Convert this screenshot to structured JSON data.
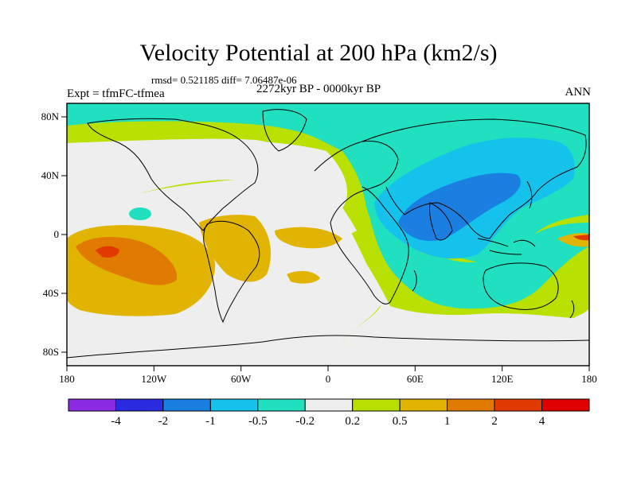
{
  "title": "Velocity Potential at 200 hPa (km2/s)",
  "stats_line": "rmsd= 0.521185 diff= 7.06487e-06",
  "experiment": "Expt = tfmFC-tfmea",
  "period": "2272kyr BP - 0000kyr BP",
  "season": "ANN",
  "map": {
    "lon_ticks": [
      "180",
      "120W",
      "60W",
      "0",
      "60E",
      "120E",
      "180"
    ],
    "lat_ticks": [
      "80N",
      "40N",
      "0",
      "40S",
      "80S"
    ]
  },
  "colorbar": {
    "labels": [
      "-4",
      "-2",
      "-1",
      "-0.5",
      "-0.2",
      "0.2",
      "0.5",
      "1",
      "2",
      "4"
    ],
    "colors": [
      "#8a2be2",
      "#2a2ae0",
      "#1a7fe0",
      "#15c2ec",
      "#20e0c0",
      "#eeeeee",
      "#b8e000",
      "#e0b400",
      "#e07a00",
      "#e03a00",
      "#e00000"
    ]
  }
}
